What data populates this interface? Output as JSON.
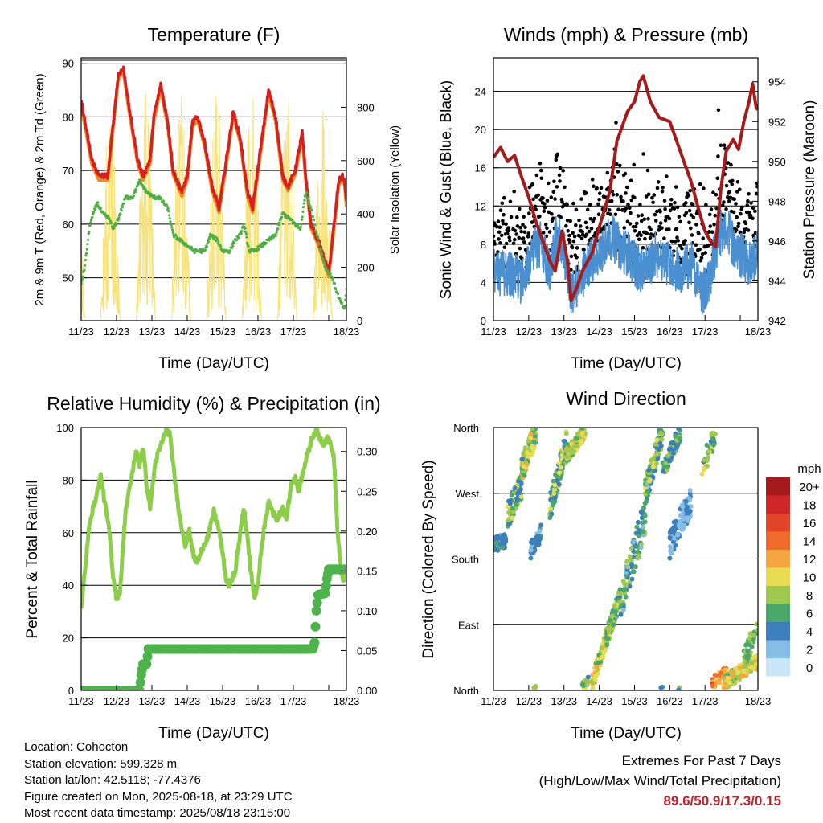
{
  "x_ticks": [
    "11/23",
    "12/23",
    "13/23",
    "14/23",
    "15/23",
    "16/23",
    "17/23",
    "18/23"
  ],
  "xlabel": "Time (Day/UTC)",
  "chart_data": [
    {
      "type": "line",
      "title": "Temperature (F)",
      "ylabel_left": "2m & 9m T (Red, Orange) & 2m Td (Green)",
      "ylabel_right": "Solar Insolation (Yellow)",
      "ylim_left": [
        42,
        91
      ],
      "ylim_right": [
        0,
        985
      ],
      "yticks_left": [
        "50",
        "60",
        "70",
        "80",
        "90"
      ],
      "yticks_right": [
        "0",
        "200",
        "400",
        "600",
        "800"
      ],
      "colors": {
        "t2m": "#d42020",
        "t9m": "#f5891e",
        "td": "#4fb043",
        "solar": "#f7e37a"
      },
      "temp_points": [
        [
          0,
          83
        ],
        [
          0.3,
          72
        ],
        [
          0.5,
          69
        ],
        [
          0.75,
          69
        ],
        [
          1.05,
          88
        ],
        [
          1.2,
          89
        ],
        [
          1.35,
          82
        ],
        [
          1.6,
          72
        ],
        [
          1.75,
          69
        ],
        [
          1.95,
          72
        ],
        [
          2.05,
          80
        ],
        [
          2.25,
          86
        ],
        [
          2.45,
          79
        ],
        [
          2.6,
          70
        ],
        [
          2.85,
          66
        ],
        [
          3.0,
          69
        ],
        [
          3.15,
          79
        ],
        [
          3.3,
          80
        ],
        [
          3.5,
          75
        ],
        [
          3.7,
          67
        ],
        [
          3.9,
          63
        ],
        [
          4.15,
          74
        ],
        [
          4.3,
          81
        ],
        [
          4.5,
          76
        ],
        [
          4.7,
          66
        ],
        [
          4.85,
          63
        ],
        [
          5.05,
          73
        ],
        [
          5.3,
          85
        ],
        [
          5.5,
          80
        ],
        [
          5.7,
          69
        ],
        [
          5.85,
          67
        ],
        [
          6.05,
          70
        ],
        [
          6.25,
          77
        ],
        [
          6.35,
          69
        ],
        [
          6.5,
          60
        ],
        [
          6.7,
          57
        ],
        [
          6.9,
          53
        ],
        [
          7.0,
          51
        ],
        [
          7.15,
          60
        ],
        [
          7.28,
          68
        ],
        [
          7.38,
          69
        ],
        [
          7.45,
          68
        ],
        [
          7.5,
          64
        ]
      ],
      "dew_points": [
        [
          0,
          49
        ],
        [
          0.1,
          52
        ],
        [
          0.25,
          60
        ],
        [
          0.45,
          64
        ],
        [
          0.6,
          62
        ],
        [
          0.8,
          61
        ],
        [
          0.9,
          59
        ],
        [
          1.05,
          61
        ],
        [
          1.25,
          65
        ],
        [
          1.45,
          65
        ],
        [
          1.65,
          68
        ],
        [
          1.85,
          66
        ],
        [
          2.05,
          65
        ],
        [
          2.2,
          65
        ],
        [
          2.45,
          63
        ],
        [
          2.6,
          58
        ],
        [
          2.8,
          57
        ],
        [
          3.0,
          56
        ],
        [
          3.2,
          55
        ],
        [
          3.35,
          55
        ],
        [
          3.5,
          55
        ],
        [
          3.65,
          58
        ],
        [
          3.85,
          57
        ],
        [
          4.0,
          55
        ],
        [
          4.2,
          55
        ],
        [
          4.35,
          57
        ],
        [
          4.5,
          58
        ],
        [
          4.6,
          60
        ],
        [
          4.75,
          55
        ],
        [
          4.9,
          55
        ],
        [
          5.1,
          56
        ],
        [
          5.3,
          57
        ],
        [
          5.5,
          58
        ],
        [
          5.7,
          62
        ],
        [
          5.9,
          61
        ],
        [
          6.05,
          60
        ],
        [
          6.2,
          59
        ],
        [
          6.35,
          66
        ],
        [
          6.5,
          63
        ],
        [
          6.7,
          57
        ],
        [
          6.9,
          52
        ],
        [
          7.1,
          50
        ],
        [
          7.3,
          46
        ],
        [
          7.45,
          44
        ],
        [
          7.5,
          48
        ]
      ],
      "solar_peak": 880
    },
    {
      "type": "line",
      "title": "Winds (mph) & Pressure (mb)",
      "ylabel_left": "Sonic Wind & Gust (Blue, Black)",
      "ylabel_right": "Station Pressure (Maroon)",
      "ylim_left": [
        0,
        27.5
      ],
      "ylim_right": [
        942,
        955.2
      ],
      "yticks_left": [
        "0",
        "4",
        "8",
        "12",
        "16",
        "20",
        "24"
      ],
      "yticks_right": [
        "942",
        "944",
        "946",
        "948",
        "950",
        "952",
        "954"
      ],
      "colors": {
        "wind": "#4a8fcf",
        "gust": "#000000",
        "pressure": "#a51b1b"
      },
      "pressure_points": [
        [
          0,
          950.2
        ],
        [
          0.2,
          950.7
        ],
        [
          0.4,
          950.0
        ],
        [
          0.6,
          950.3
        ],
        [
          0.8,
          949.2
        ],
        [
          1.0,
          948.2
        ],
        [
          1.2,
          947.0
        ],
        [
          1.4,
          946.0
        ],
        [
          1.6,
          945.0
        ],
        [
          1.75,
          944.5
        ],
        [
          1.95,
          946.5
        ],
        [
          2.1,
          945.0
        ],
        [
          2.2,
          943.0
        ],
        [
          2.35,
          943.6
        ],
        [
          2.55,
          944.6
        ],
        [
          2.8,
          945.4
        ],
        [
          3.05,
          947.0
        ],
        [
          3.3,
          948.5
        ],
        [
          3.5,
          951.0
        ],
        [
          3.8,
          952.5
        ],
        [
          4.0,
          953.0
        ],
        [
          4.15,
          954.0
        ],
        [
          4.25,
          954.3
        ],
        [
          4.45,
          953.0
        ],
        [
          4.7,
          952.2
        ],
        [
          5.0,
          952.0
        ],
        [
          5.2,
          951.0
        ],
        [
          5.4,
          950.0
        ],
        [
          5.6,
          949.0
        ],
        [
          5.85,
          947.4
        ],
        [
          6.0,
          946.5
        ],
        [
          6.15,
          946.0
        ],
        [
          6.3,
          945.7
        ],
        [
          6.45,
          948.6
        ],
        [
          6.6,
          950.5
        ],
        [
          6.8,
          951.1
        ],
        [
          6.95,
          950.6
        ],
        [
          7.1,
          952.0
        ],
        [
          7.25,
          953.0
        ],
        [
          7.35,
          953.9
        ],
        [
          7.45,
          952.7
        ],
        [
          7.5,
          952.6
        ]
      ],
      "wind_mean_points": [
        [
          0,
          5
        ],
        [
          0.5,
          5
        ],
        [
          0.8,
          4
        ],
        [
          1.1,
          7
        ],
        [
          1.35,
          8
        ],
        [
          1.6,
          5
        ],
        [
          1.8,
          9
        ],
        [
          2.0,
          7
        ],
        [
          2.2,
          3
        ],
        [
          2.45,
          4
        ],
        [
          2.7,
          6
        ],
        [
          3.0,
          7
        ],
        [
          3.3,
          9
        ],
        [
          3.5,
          8
        ],
        [
          3.8,
          7
        ],
        [
          4.2,
          5
        ],
        [
          4.6,
          7
        ],
        [
          5.0,
          6
        ],
        [
          5.3,
          5
        ],
        [
          5.6,
          6
        ],
        [
          5.9,
          3
        ],
        [
          6.1,
          4
        ],
        [
          6.4,
          9
        ],
        [
          6.6,
          10
        ],
        [
          6.8,
          8
        ],
        [
          7.0,
          7
        ],
        [
          7.2,
          6
        ],
        [
          7.5,
          7
        ]
      ],
      "gust_peak": 25.5
    },
    {
      "type": "line",
      "title": "Relative Humidity (%) & Precipitation (in)",
      "ylabel_left": "Percent & Total Rainfall",
      "ylim_left": [
        0,
        100
      ],
      "ylim_right": [
        0,
        0.33
      ],
      "yticks_left": [
        "0",
        "20",
        "40",
        "60",
        "80",
        "100"
      ],
      "yticks_right": [
        "0.00",
        "0.05",
        "0.10",
        "0.15",
        "0.20",
        "0.25",
        "0.30"
      ],
      "colors": {
        "rh": "#8ccd4a",
        "precip": "#4cb44a"
      },
      "rh_points": [
        [
          0,
          31
        ],
        [
          0.1,
          45
        ],
        [
          0.25,
          65
        ],
        [
          0.45,
          75
        ],
        [
          0.55,
          82
        ],
        [
          0.65,
          73
        ],
        [
          0.8,
          60
        ],
        [
          0.9,
          44
        ],
        [
          1.0,
          35
        ],
        [
          1.1,
          38
        ],
        [
          1.25,
          68
        ],
        [
          1.45,
          83
        ],
        [
          1.55,
          91
        ],
        [
          1.65,
          86
        ],
        [
          1.75,
          93
        ],
        [
          1.85,
          78
        ],
        [
          1.95,
          70
        ],
        [
          2.1,
          87
        ],
        [
          2.3,
          95
        ],
        [
          2.4,
          99
        ],
        [
          2.5,
          98
        ],
        [
          2.65,
          80
        ],
        [
          2.8,
          65
        ],
        [
          2.95,
          55
        ],
        [
          3.05,
          61
        ],
        [
          3.2,
          50
        ],
        [
          3.3,
          49
        ],
        [
          3.45,
          55
        ],
        [
          3.6,
          59
        ],
        [
          3.75,
          68
        ],
        [
          3.9,
          61
        ],
        [
          4.0,
          52
        ],
        [
          4.1,
          42
        ],
        [
          4.2,
          40
        ],
        [
          4.35,
          45
        ],
        [
          4.5,
          60
        ],
        [
          4.6,
          70
        ],
        [
          4.7,
          58
        ],
        [
          4.8,
          45
        ],
        [
          4.9,
          35
        ],
        [
          5.0,
          40
        ],
        [
          5.1,
          55
        ],
        [
          5.3,
          72
        ],
        [
          5.45,
          67
        ],
        [
          5.55,
          65
        ],
        [
          5.7,
          70
        ],
        [
          5.8,
          65
        ],
        [
          5.95,
          79
        ],
        [
          6.05,
          81
        ],
        [
          6.15,
          76
        ],
        [
          6.3,
          85
        ],
        [
          6.45,
          92
        ],
        [
          6.55,
          97
        ],
        [
          6.65,
          99
        ],
        [
          6.75,
          96
        ],
        [
          6.85,
          94
        ],
        [
          6.95,
          96
        ],
        [
          7.05,
          94
        ],
        [
          7.15,
          88
        ],
        [
          7.25,
          60
        ],
        [
          7.35,
          45
        ],
        [
          7.45,
          41
        ],
        [
          7.5,
          48
        ]
      ],
      "precip_steps": [
        [
          0,
          0
        ],
        [
          1.65,
          0
        ],
        [
          1.7,
          0.02
        ],
        [
          1.75,
          0.033
        ],
        [
          1.85,
          0.033
        ],
        [
          1.9,
          0.052
        ],
        [
          6.55,
          0.052
        ],
        [
          6.6,
          0.06
        ],
        [
          6.65,
          0.1
        ],
        [
          6.7,
          0.12
        ],
        [
          6.9,
          0.122
        ],
        [
          6.95,
          0.14
        ],
        [
          7.0,
          0.152
        ],
        [
          7.5,
          0.152
        ]
      ]
    },
    {
      "type": "scatter",
      "title": "Wind Direction",
      "ylabel_left": "Direction (Colored By Speed)",
      "yticks_left": [
        "North",
        "East",
        "South",
        "West",
        "North"
      ],
      "legend_title": "mph",
      "legend": {
        "labels": [
          "20+",
          "18",
          "16",
          "14",
          "12",
          "10",
          "8",
          "6",
          "4",
          "2",
          "0"
        ],
        "colors": [
          "#a51b1b",
          "#cf2727",
          "#e24428",
          "#f06b2c",
          "#f6a640",
          "#e8dd52",
          "#9ec94e",
          "#49a86a",
          "#3d7fbc",
          "#85bde6",
          "#c9e6f6"
        ]
      }
    }
  ],
  "info": {
    "location": "Location: Cohocton",
    "elevation": "Station elevation: 599.328 m",
    "latlon": "Station lat/lon: 42.5118; -77.4376",
    "created": "Figure created on Mon, 2025-08-18, at 23:29 UTC",
    "recent": "Most recent data timestamp: 2025/08/18 23:15:00"
  },
  "extremes": {
    "title": "Extremes For Past 7 Days",
    "subtitle": "(High/Low/Max Wind/Total Precipitation)",
    "values": "89.6/50.9/17.3/0.15",
    "color": "#c41f2a"
  }
}
